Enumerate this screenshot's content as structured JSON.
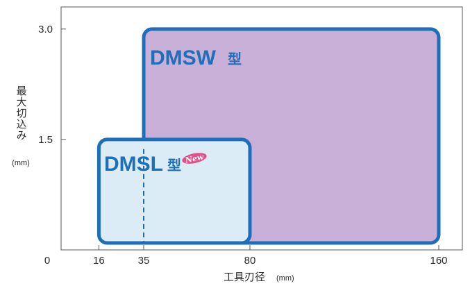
{
  "chart_data": {
    "type": "area",
    "title": "",
    "xlabel": "工具刃径",
    "xlabel_unit": "(mm)",
    "ylabel": "最大切込み",
    "ylabel_unit": "(mm)",
    "xlim": [
      0,
      170
    ],
    "ylim": [
      0,
      3.3
    ],
    "x_ticks": [
      {
        "value": 0,
        "label": "0"
      },
      {
        "value": 16,
        "label": "16"
      },
      {
        "value": 35,
        "label": "35"
      },
      {
        "value": 80,
        "label": "80"
      },
      {
        "value": 160,
        "label": "160"
      }
    ],
    "y_ticks": [
      {
        "value": 1.5,
        "label": "1.5"
      },
      {
        "value": 3.0,
        "label": "3.0"
      }
    ],
    "grid": false,
    "legend": "none",
    "series": [
      {
        "name": "DMSW",
        "name_suffix": "型",
        "x_range": [
          35,
          160
        ],
        "y_max": 3.0,
        "fill_color": "#c8b0d8",
        "border_color": "#1f6fb8",
        "label_color": "#1f6fb8"
      },
      {
        "name": "DMSL",
        "name_suffix": "型",
        "x_range": [
          16,
          80
        ],
        "y_max": 1.5,
        "fill_color": "#dcecf7",
        "border_color": "#1f6fb8",
        "label_color": "#1f6fb8",
        "badge": "New",
        "badge_color": "#e2508a"
      }
    ],
    "reference_lines": [
      {
        "x": 35,
        "style": "dashed",
        "color": "#1f6fb8"
      }
    ]
  }
}
